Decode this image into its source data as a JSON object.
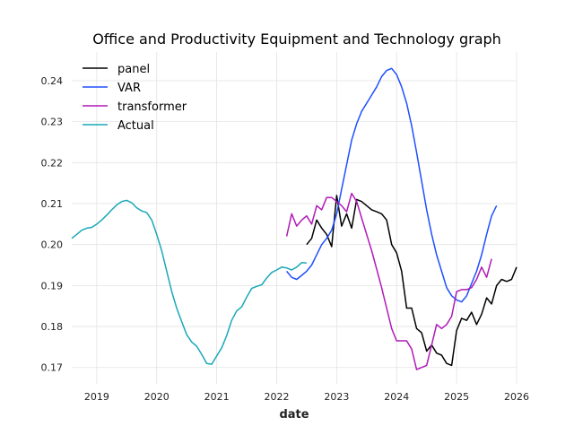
{
  "chart_data": {
    "type": "line",
    "title": "Office and Productivity Equipment and Technology graph",
    "xlabel": "date",
    "ylabel": "",
    "xlim": [
      "2018-08-01",
      "2026-01-01"
    ],
    "ylim": [
      0.166,
      0.247
    ],
    "x_ticks": [
      "2019",
      "2020",
      "2021",
      "2022",
      "2023",
      "2024",
      "2025",
      "2026"
    ],
    "y_ticks": [
      "0.17",
      "0.18",
      "0.19",
      "0.20",
      "0.21",
      "0.22",
      "0.23",
      "0.24"
    ],
    "grid": true,
    "legend_position": "top-left",
    "series": [
      {
        "name": "panel",
        "color": "#000000",
        "points": [
          [
            "2022-07-01",
            0.2
          ],
          [
            "2022-08-01",
            0.2015
          ],
          [
            "2022-09-01",
            0.206
          ],
          [
            "2022-10-01",
            0.204
          ],
          [
            "2022-11-01",
            0.2025
          ],
          [
            "2022-12-01",
            0.1995
          ],
          [
            "2023-01-01",
            0.212
          ],
          [
            "2023-02-01",
            0.2045
          ],
          [
            "2023-03-01",
            0.2075
          ],
          [
            "2023-04-01",
            0.204
          ],
          [
            "2023-05-01",
            0.211
          ],
          [
            "2023-06-01",
            0.2105
          ],
          [
            "2023-07-01",
            0.2095
          ],
          [
            "2023-08-01",
            0.2085
          ],
          [
            "2023-09-01",
            0.208
          ],
          [
            "2023-10-01",
            0.2075
          ],
          [
            "2023-11-01",
            0.206
          ],
          [
            "2023-12-01",
            0.2
          ],
          [
            "2024-01-01",
            0.198
          ],
          [
            "2024-02-01",
            0.1935
          ],
          [
            "2024-03-01",
            0.1845
          ],
          [
            "2024-04-01",
            0.1845
          ],
          [
            "2024-05-01",
            0.1795
          ],
          [
            "2024-06-01",
            0.1785
          ],
          [
            "2024-07-01",
            0.174
          ],
          [
            "2024-08-01",
            0.1755
          ],
          [
            "2024-09-01",
            0.1735
          ],
          [
            "2024-10-01",
            0.173
          ],
          [
            "2024-11-01",
            0.171
          ],
          [
            "2024-12-01",
            0.1705
          ],
          [
            "2025-01-01",
            0.179
          ],
          [
            "2025-02-01",
            0.182
          ],
          [
            "2025-03-01",
            0.1815
          ],
          [
            "2025-04-01",
            0.1835
          ],
          [
            "2025-05-01",
            0.1805
          ],
          [
            "2025-06-01",
            0.183
          ],
          [
            "2025-07-01",
            0.187
          ],
          [
            "2025-08-01",
            0.1855
          ],
          [
            "2025-09-01",
            0.19
          ],
          [
            "2025-10-01",
            0.1915
          ],
          [
            "2025-11-01",
            0.191
          ],
          [
            "2025-12-01",
            0.1915
          ],
          [
            "2026-01-01",
            0.1945
          ]
        ]
      },
      {
        "name": "VAR",
        "color": "#1f4fff",
        "points": [
          [
            "2022-03-01",
            0.1935
          ],
          [
            "2022-04-01",
            0.192
          ],
          [
            "2022-05-01",
            0.1915
          ],
          [
            "2022-06-01",
            0.1925
          ],
          [
            "2022-07-01",
            0.1935
          ],
          [
            "2022-08-01",
            0.195
          ],
          [
            "2022-09-01",
            0.1975
          ],
          [
            "2022-10-01",
            0.2
          ],
          [
            "2022-11-01",
            0.2015
          ],
          [
            "2022-12-01",
            0.2035
          ],
          [
            "2023-01-01",
            0.2075
          ],
          [
            "2023-02-01",
            0.2135
          ],
          [
            "2023-03-01",
            0.2195
          ],
          [
            "2023-04-01",
            0.2255
          ],
          [
            "2023-05-01",
            0.2295
          ],
          [
            "2023-06-01",
            0.2325
          ],
          [
            "2023-07-01",
            0.2345
          ],
          [
            "2023-08-01",
            0.2365
          ],
          [
            "2023-09-01",
            0.2385
          ],
          [
            "2023-10-01",
            0.241
          ],
          [
            "2023-11-01",
            0.2425
          ],
          [
            "2023-12-01",
            0.243
          ],
          [
            "2024-01-01",
            0.2415
          ],
          [
            "2024-02-01",
            0.2385
          ],
          [
            "2024-03-01",
            0.2345
          ],
          [
            "2024-04-01",
            0.229
          ],
          [
            "2024-05-01",
            0.2225
          ],
          [
            "2024-06-01",
            0.2155
          ],
          [
            "2024-07-01",
            0.2085
          ],
          [
            "2024-08-01",
            0.2025
          ],
          [
            "2024-09-01",
            0.1975
          ],
          [
            "2024-10-01",
            0.1935
          ],
          [
            "2024-11-01",
            0.1895
          ],
          [
            "2024-12-01",
            0.1875
          ],
          [
            "2025-01-01",
            0.1865
          ],
          [
            "2025-02-01",
            0.186
          ],
          [
            "2025-03-01",
            0.1875
          ],
          [
            "2025-04-01",
            0.1905
          ],
          [
            "2025-05-01",
            0.1935
          ],
          [
            "2025-06-01",
            0.1975
          ],
          [
            "2025-07-01",
            0.2025
          ],
          [
            "2025-08-01",
            0.207
          ],
          [
            "2025-09-01",
            0.2095
          ]
        ]
      },
      {
        "name": "transformer",
        "color": "#b01ab8",
        "points": [
          [
            "2022-03-01",
            0.202
          ],
          [
            "2022-04-01",
            0.2075
          ],
          [
            "2022-05-01",
            0.2045
          ],
          [
            "2022-06-01",
            0.206
          ],
          [
            "2022-07-01",
            0.207
          ],
          [
            "2022-08-01",
            0.205
          ],
          [
            "2022-09-01",
            0.2095
          ],
          [
            "2022-10-01",
            0.2085
          ],
          [
            "2022-11-01",
            0.2115
          ],
          [
            "2022-12-01",
            0.2115
          ],
          [
            "2023-01-01",
            0.2105
          ],
          [
            "2023-02-01",
            0.2095
          ],
          [
            "2023-03-01",
            0.208
          ],
          [
            "2023-04-01",
            0.2125
          ],
          [
            "2023-05-01",
            0.2105
          ],
          [
            "2023-06-01",
            0.2065
          ],
          [
            "2023-07-01",
            0.2025
          ],
          [
            "2023-08-01",
            0.1985
          ],
          [
            "2023-09-01",
            0.194
          ],
          [
            "2023-10-01",
            0.1895
          ],
          [
            "2023-11-01",
            0.1845
          ],
          [
            "2023-12-01",
            0.1795
          ],
          [
            "2024-01-01",
            0.1765
          ],
          [
            "2024-02-01",
            0.1765
          ],
          [
            "2024-03-01",
            0.1765
          ],
          [
            "2024-04-01",
            0.1745
          ],
          [
            "2024-05-01",
            0.1695
          ],
          [
            "2024-06-01",
            0.17
          ],
          [
            "2024-07-01",
            0.1705
          ],
          [
            "2024-08-01",
            0.1755
          ],
          [
            "2024-09-01",
            0.1805
          ],
          [
            "2024-10-01",
            0.1795
          ],
          [
            "2024-11-01",
            0.1805
          ],
          [
            "2024-12-01",
            0.1825
          ],
          [
            "2025-01-01",
            0.1885
          ],
          [
            "2025-02-01",
            0.189
          ],
          [
            "2025-03-01",
            0.189
          ],
          [
            "2025-04-01",
            0.1895
          ],
          [
            "2025-05-01",
            0.1915
          ],
          [
            "2025-06-01",
            0.1945
          ],
          [
            "2025-07-01",
            0.192
          ],
          [
            "2025-08-01",
            0.1965
          ]
        ]
      },
      {
        "name": "Actual",
        "color": "#19a8b8",
        "points": [
          [
            "2018-08-01",
            0.2015
          ],
          [
            "2018-09-01",
            0.2025
          ],
          [
            "2018-10-01",
            0.2035
          ],
          [
            "2018-11-01",
            0.204
          ],
          [
            "2018-12-01",
            0.2042
          ],
          [
            "2019-01-01",
            0.205
          ],
          [
            "2019-02-01",
            0.206
          ],
          [
            "2019-03-01",
            0.2072
          ],
          [
            "2019-04-01",
            0.2085
          ],
          [
            "2019-05-01",
            0.2097
          ],
          [
            "2019-06-01",
            0.2105
          ],
          [
            "2019-07-01",
            0.2108
          ],
          [
            "2019-08-01",
            0.2102
          ],
          [
            "2019-09-01",
            0.209
          ],
          [
            "2019-10-01",
            0.2082
          ],
          [
            "2019-11-01",
            0.2078
          ],
          [
            "2019-12-01",
            0.206
          ],
          [
            "2020-01-01",
            0.2025
          ],
          [
            "2020-02-01",
            0.1985
          ],
          [
            "2020-03-01",
            0.1935
          ],
          [
            "2020-04-01",
            0.1885
          ],
          [
            "2020-05-01",
            0.1845
          ],
          [
            "2020-06-01",
            0.1812
          ],
          [
            "2020-07-01",
            0.178
          ],
          [
            "2020-08-01",
            0.1762
          ],
          [
            "2020-09-01",
            0.1752
          ],
          [
            "2020-10-01",
            0.1732
          ],
          [
            "2020-11-01",
            0.171
          ],
          [
            "2020-12-01",
            0.1708
          ],
          [
            "2021-01-01",
            0.1728
          ],
          [
            "2021-02-01",
            0.1748
          ],
          [
            "2021-03-01",
            0.1778
          ],
          [
            "2021-04-01",
            0.1815
          ],
          [
            "2021-05-01",
            0.1838
          ],
          [
            "2021-06-01",
            0.1848
          ],
          [
            "2021-07-01",
            0.1872
          ],
          [
            "2021-08-01",
            0.1893
          ],
          [
            "2021-09-01",
            0.1898
          ],
          [
            "2021-10-01",
            0.1902
          ],
          [
            "2021-11-01",
            0.1918
          ],
          [
            "2021-12-01",
            0.1932
          ],
          [
            "2022-01-01",
            0.1938
          ],
          [
            "2022-02-01",
            0.1945
          ],
          [
            "2022-03-01",
            0.1943
          ],
          [
            "2022-04-01",
            0.1938
          ],
          [
            "2022-05-01",
            0.1945
          ],
          [
            "2022-06-01",
            0.1956
          ],
          [
            "2022-07-01",
            0.1955
          ]
        ]
      }
    ]
  }
}
